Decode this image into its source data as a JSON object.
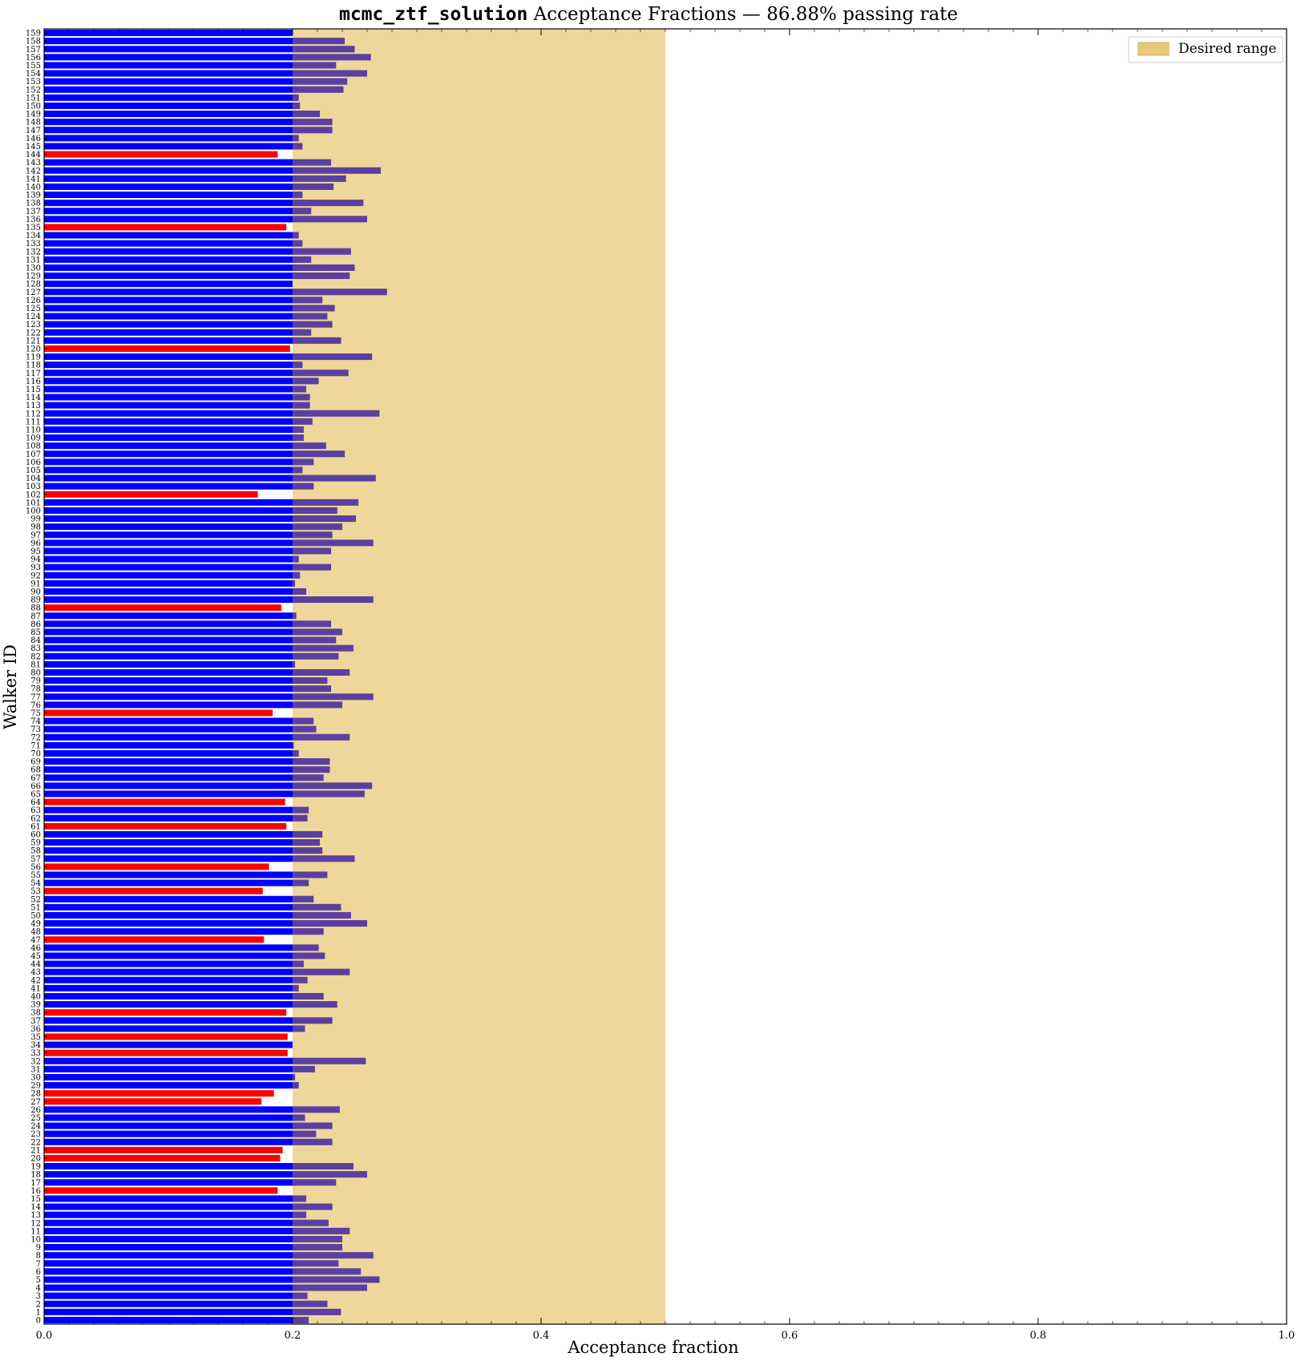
{
  "chart_data": {
    "type": "bar",
    "orientation": "horizontal",
    "title_code": "mcmc_ztf_solution",
    "title_text": " Acceptance Fractions — 86.88% passing rate",
    "xlabel": "Acceptance fraction",
    "ylabel": "Walker ID",
    "xlim": [
      0,
      1
    ],
    "xticks": [
      "0.0",
      "0.2",
      "0.4",
      "0.6",
      "0.8",
      "1.0"
    ],
    "desired_range": [
      0.2,
      0.5
    ],
    "legend": {
      "label": "Desired range",
      "position": "top-right"
    },
    "threshold": 0.2,
    "colors": {
      "passing": "#0000ff",
      "failing": "#ff0000",
      "desired_range": "#e8c97a",
      "overlap_bar": "#5b3fa0"
    },
    "walker_ids": [
      0,
      1,
      2,
      3,
      4,
      5,
      6,
      7,
      8,
      9,
      10,
      11,
      12,
      13,
      14,
      15,
      16,
      17,
      18,
      19,
      20,
      21,
      22,
      23,
      24,
      25,
      26,
      27,
      28,
      29,
      30,
      31,
      32,
      33,
      34,
      35,
      36,
      37,
      38,
      39,
      40,
      41,
      42,
      43,
      44,
      45,
      46,
      47,
      48,
      49,
      50,
      51,
      52,
      53,
      54,
      55,
      56,
      57,
      58,
      59,
      60,
      61,
      62,
      63,
      64,
      65,
      66,
      67,
      68,
      69,
      70,
      71,
      72,
      73,
      74,
      75,
      76,
      77,
      78,
      79,
      80,
      81,
      82,
      83,
      84,
      85,
      86,
      87,
      88,
      89,
      90,
      91,
      92,
      93,
      94,
      95,
      96,
      97,
      98,
      99,
      100,
      101,
      102,
      103,
      104,
      105,
      106,
      107,
      108,
      109,
      110,
      111,
      112,
      113,
      114,
      115,
      116,
      117,
      118,
      119,
      120,
      121,
      122,
      123,
      124,
      125,
      126,
      127,
      128,
      129,
      130,
      131,
      132,
      133,
      134,
      135,
      136,
      137,
      138,
      139,
      140,
      141,
      142,
      143,
      144,
      145,
      146,
      147,
      148,
      149,
      150,
      151,
      152,
      153,
      154,
      155,
      156,
      157,
      158,
      159
    ],
    "values": [
      0.213,
      0.239,
      0.228,
      0.212,
      0.26,
      0.27,
      0.255,
      0.237,
      0.265,
      0.24,
      0.24,
      0.246,
      0.229,
      0.211,
      0.232,
      0.211,
      0.188,
      0.235,
      0.26,
      0.249,
      0.19,
      0.192,
      0.232,
      0.219,
      0.232,
      0.21,
      0.238,
      0.175,
      0.185,
      0.205,
      0.202,
      0.218,
      0.259,
      0.196,
      0.2,
      0.196,
      0.21,
      0.232,
      0.195,
      0.236,
      0.225,
      0.205,
      0.212,
      0.246,
      0.209,
      0.226,
      0.221,
      0.177,
      0.225,
      0.26,
      0.247,
      0.239,
      0.217,
      0.176,
      0.213,
      0.228,
      0.181,
      0.25,
      0.224,
      0.222,
      0.224,
      0.195,
      0.212,
      0.213,
      0.194,
      0.258,
      0.264,
      0.225,
      0.23,
      0.23,
      0.205,
      0.201,
      0.246,
      0.219,
      0.217,
      0.184,
      0.24,
      0.265,
      0.231,
      0.228,
      0.246,
      0.202,
      0.237,
      0.249,
      0.235,
      0.24,
      0.231,
      0.203,
      0.191,
      0.265,
      0.211,
      0.202,
      0.206,
      0.231,
      0.205,
      0.231,
      0.265,
      0.232,
      0.24,
      0.251,
      0.236,
      0.253,
      0.172,
      0.217,
      0.267,
      0.208,
      0.217,
      0.242,
      0.227,
      0.209,
      0.209,
      0.216,
      0.27,
      0.214,
      0.214,
      0.211,
      0.221,
      0.245,
      0.208,
      0.264,
      0.198,
      0.239,
      0.215,
      0.232,
      0.228,
      0.234,
      0.224,
      0.276,
      0.2,
      0.246,
      0.25,
      0.215,
      0.247,
      0.208,
      0.205,
      0.195,
      0.26,
      0.215,
      0.257,
      0.208,
      0.233,
      0.243,
      0.271,
      0.231,
      0.188,
      0.208,
      0.205,
      0.232,
      0.232,
      0.222,
      0.206,
      0.205,
      0.241,
      0.244,
      0.26,
      0.235,
      0.263,
      0.25,
      0.242,
      0.2
    ]
  }
}
